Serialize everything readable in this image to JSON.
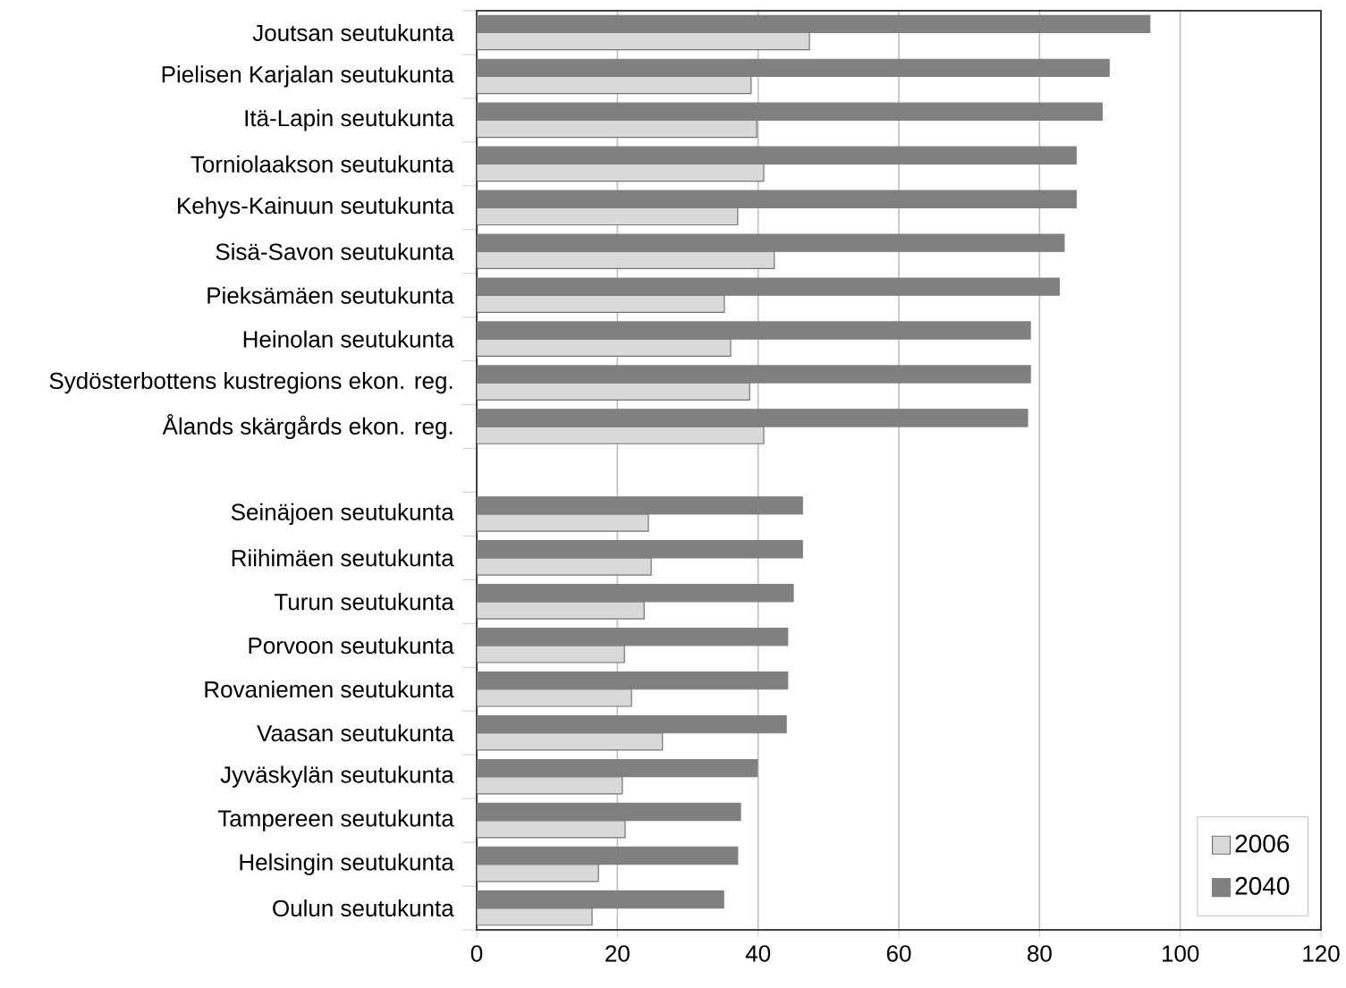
{
  "chart_data": {
    "type": "bar",
    "orientation": "horizontal",
    "categories": [
      "Joutsan seutukunta",
      "Pielisen Karjalan seutukunta",
      "Itä-Lapin seutukunta",
      "Torniolaakson seutukunta",
      "Kehys-Kainuun seutukunta",
      "Sisä-Savon seutukunta",
      "Pieksämäen seutukunta",
      "Heinolan seutukunta",
      "Sydösterbottens kustregions ekon. reg.",
      "Ålands skärgårds ekon. reg.",
      null,
      "Seinäjoen seutukunta",
      "Riihimäen seutukunta",
      "Turun seutukunta",
      "Porvoon seutukunta",
      "Rovaniemen seutukunta",
      "Vaasan seutukunta",
      "Jyväskylän seutukunta",
      "Tampereen seutukunta",
      "Helsingin seutukunta",
      "Oulun seutukunta"
    ],
    "series": [
      {
        "name": "2006",
        "color": "#d9d9d9",
        "values": [
          47.3,
          39.0,
          39.8,
          40.8,
          37.1,
          42.3,
          35.2,
          36.1,
          38.8,
          40.8,
          null,
          24.4,
          24.8,
          23.8,
          21.0,
          22.0,
          26.4,
          20.7,
          21.1,
          17.3,
          16.4
        ]
      },
      {
        "name": "2040",
        "color": "#808080",
        "values": [
          95.7,
          89.9,
          88.9,
          85.2,
          85.2,
          83.5,
          82.8,
          78.7,
          78.7,
          78.3,
          null,
          46.3,
          46.3,
          45.0,
          44.2,
          44.2,
          44.0,
          39.9,
          37.5,
          37.1,
          35.1
        ]
      }
    ],
    "xlim": [
      0,
      120
    ],
    "xticks": [
      0,
      20,
      40,
      60,
      80,
      100,
      120
    ],
    "grid": "x",
    "legend": "bottom right"
  }
}
